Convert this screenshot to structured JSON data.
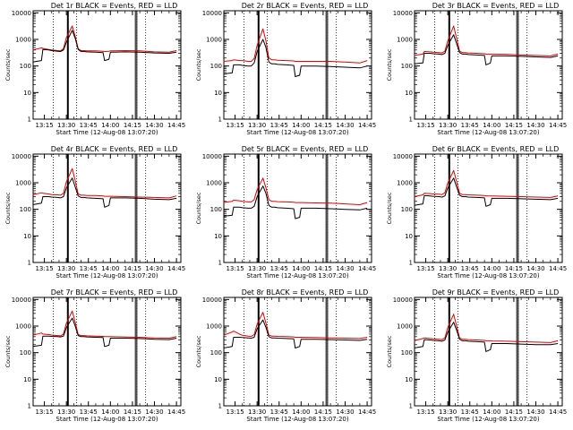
{
  "colors": {
    "events": "#000000",
    "lld": "#e00000",
    "axes": "#000000",
    "background": "#ffffff"
  },
  "panel_shared": {
    "x_tick_labels": [
      "13:15",
      "13:30",
      "13:45",
      "14:00",
      "14:15",
      "14:30",
      "14:45"
    ],
    "x_tick_times": [
      "13:15",
      "13:30",
      "13:45",
      "14:00",
      "14:15",
      "14:30",
      "14:45"
    ],
    "y_tick_labels": [
      "1",
      "10",
      "100",
      "1000",
      "10000"
    ],
    "xlabel": "Start Time (12-Aug-08 13:07:20)",
    "ylabel": "Counts/sec"
  },
  "chart_data": [
    {
      "type": "line",
      "title": "Det 1r  BLACK = Events, RED = LLD",
      "xlabel": "Start Time (12-Aug-08 13:07:20)",
      "ylabel": "Counts/sec",
      "xlim": [
        "13:07:20",
        "14:48:00"
      ],
      "ylim": [
        1,
        12000
      ],
      "yscale": "log",
      "x": [
        "13:07",
        "13:13",
        "13:14",
        "13:18",
        "13:20",
        "13:24",
        "13:26",
        "13:28",
        "13:30",
        "13:34",
        "13:36",
        "13:38",
        "13:40",
        "13:42",
        "13:44",
        "13:50",
        "13:55",
        "13:56",
        "13:59",
        "14:00",
        "14:10",
        "14:20",
        "14:30",
        "14:40",
        "14:45"
      ],
      "series": [
        {
          "name": "BLACK = Events",
          "values": [
            140,
            160,
            420,
            400,
            380,
            360,
            350,
            400,
            800,
            2200,
            1100,
            420,
            350,
            350,
            340,
            330,
            320,
            160,
            180,
            330,
            340,
            330,
            310,
            300,
            330
          ]
        },
        {
          "name": "RED = LLD",
          "values": [
            400,
            480,
            460,
            420,
            400,
            380,
            370,
            450,
            1200,
            3200,
            1300,
            450,
            380,
            380,
            370,
            370,
            360,
            350,
            360,
            370,
            380,
            370,
            340,
            330,
            380
          ]
        }
      ],
      "vlines_solid": [
        "13:31",
        "14:17",
        "14:18"
      ],
      "vlines_dotted": [
        "13:21",
        "13:37",
        "14:18",
        "14:24"
      ]
    },
    {
      "type": "line",
      "title": "Det 2r  BLACK = Events, RED = LLD",
      "xlabel": "Start Time (12-Aug-08 13:07:20)",
      "ylabel": "Counts/sec",
      "xlim": [
        "13:07:20",
        "14:48:00"
      ],
      "ylim": [
        1,
        12000
      ],
      "yscale": "log",
      "x": [
        "13:07",
        "13:13",
        "13:14",
        "13:18",
        "13:20",
        "13:24",
        "13:26",
        "13:28",
        "13:30",
        "13:34",
        "13:36",
        "13:38",
        "13:40",
        "13:42",
        "13:44",
        "13:50",
        "13:55",
        "13:56",
        "13:59",
        "14:00",
        "14:10",
        "14:20",
        "14:30",
        "14:40",
        "14:45"
      ],
      "series": [
        {
          "name": "BLACK = Events",
          "values": [
            50,
            55,
            110,
            110,
            105,
            100,
            100,
            130,
            350,
            1000,
            500,
            140,
            120,
            120,
            115,
            110,
            105,
            40,
            45,
            100,
            100,
            95,
            90,
            85,
            100
          ]
        },
        {
          "name": "RED = LLD",
          "values": [
            150,
            160,
            170,
            160,
            160,
            150,
            150,
            190,
            600,
            2500,
            900,
            200,
            170,
            170,
            165,
            160,
            155,
            150,
            150,
            150,
            150,
            150,
            140,
            130,
            160
          ]
        }
      ],
      "vlines_solid": [
        "13:31",
        "14:17",
        "14:18"
      ],
      "vlines_dotted": [
        "13:21",
        "13:37",
        "14:18",
        "14:24"
      ]
    },
    {
      "type": "line",
      "title": "Det 3r  BLACK = Events, RED = LLD",
      "xlabel": "Start Time (12-Aug-08 13:07:20)",
      "ylabel": "Counts/sec",
      "xlim": [
        "13:07:20",
        "14:48:00"
      ],
      "ylim": [
        1,
        12000
      ],
      "yscale": "log",
      "x": [
        "13:07",
        "13:13",
        "13:14",
        "13:18",
        "13:20",
        "13:24",
        "13:26",
        "13:28",
        "13:30",
        "13:34",
        "13:36",
        "13:38",
        "13:40",
        "13:42",
        "13:44",
        "13:50",
        "13:55",
        "13:56",
        "13:59",
        "14:00",
        "14:10",
        "14:20",
        "14:30",
        "14:40",
        "14:45"
      ],
      "series": [
        {
          "name": "BLACK = Events",
          "values": [
            120,
            130,
            300,
            300,
            290,
            280,
            270,
            300,
            600,
            1500,
            700,
            320,
            280,
            280,
            270,
            260,
            250,
            110,
            130,
            240,
            240,
            230,
            220,
            210,
            240
          ]
        },
        {
          "name": "RED = LLD",
          "values": [
            250,
            280,
            350,
            340,
            330,
            320,
            310,
            360,
            900,
            3200,
            1100,
            360,
            320,
            320,
            310,
            300,
            290,
            280,
            280,
            280,
            275,
            260,
            250,
            240,
            280
          ]
        }
      ],
      "vlines_solid": [
        "13:31",
        "14:17",
        "14:18"
      ],
      "vlines_dotted": [
        "13:21",
        "13:37",
        "14:18",
        "14:24"
      ]
    },
    {
      "type": "line",
      "title": "Det 4r  BLACK = Events, RED = LLD",
      "xlabel": "Start Time (12-Aug-08 13:07:20)",
      "ylabel": "Counts/sec",
      "xlim": [
        "13:07:20",
        "14:48:00"
      ],
      "ylim": [
        1,
        12000
      ],
      "yscale": "log",
      "x": [
        "13:07",
        "13:13",
        "13:14",
        "13:18",
        "13:20",
        "13:24",
        "13:26",
        "13:28",
        "13:30",
        "13:34",
        "13:36",
        "13:38",
        "13:40",
        "13:42",
        "13:44",
        "13:50",
        "13:55",
        "13:56",
        "13:59",
        "14:00",
        "14:10",
        "14:20",
        "14:30",
        "14:40",
        "14:45"
      ],
      "series": [
        {
          "name": "BLACK = Events",
          "values": [
            150,
            170,
            300,
            300,
            290,
            280,
            270,
            300,
            650,
            1500,
            700,
            320,
            280,
            280,
            270,
            260,
            250,
            120,
            140,
            270,
            270,
            260,
            240,
            230,
            260
          ]
        },
        {
          "name": "RED = LLD",
          "values": [
            350,
            420,
            400,
            380,
            360,
            350,
            340,
            400,
            1100,
            3400,
            1200,
            380,
            340,
            340,
            330,
            330,
            320,
            310,
            310,
            310,
            300,
            290,
            280,
            270,
            320
          ]
        }
      ],
      "vlines_solid": [
        "13:31",
        "14:17",
        "14:18"
      ],
      "vlines_dotted": [
        "13:21",
        "13:37",
        "14:18",
        "14:24"
      ]
    },
    {
      "type": "line",
      "title": "Det 5r  BLACK = Events, RED = LLD",
      "xlabel": "Start Time (12-Aug-08 13:07:20)",
      "ylabel": "Counts/sec",
      "xlim": [
        "13:07:20",
        "14:48:00"
      ],
      "ylim": [
        1,
        12000
      ],
      "yscale": "log",
      "x": [
        "13:07",
        "13:13",
        "13:14",
        "13:18",
        "13:20",
        "13:24",
        "13:26",
        "13:28",
        "13:30",
        "13:34",
        "13:36",
        "13:38",
        "13:40",
        "13:42",
        "13:44",
        "13:50",
        "13:55",
        "13:56",
        "13:59",
        "14:00",
        "14:10",
        "14:20",
        "14:30",
        "14:40",
        "14:45"
      ],
      "series": [
        {
          "name": "BLACK = Events",
          "values": [
            55,
            60,
            120,
            120,
            115,
            110,
            110,
            130,
            300,
            750,
            400,
            140,
            120,
            120,
            115,
            110,
            105,
            45,
            50,
            110,
            110,
            105,
            100,
            95,
            110
          ]
        },
        {
          "name": "RED = LLD",
          "values": [
            180,
            200,
            220,
            210,
            200,
            190,
            190,
            230,
            550,
            1500,
            650,
            230,
            200,
            200,
            195,
            190,
            185,
            180,
            180,
            180,
            175,
            170,
            160,
            150,
            180
          ]
        }
      ],
      "vlines_solid": [
        "13:31",
        "14:17",
        "14:18"
      ],
      "vlines_dotted": [
        "13:21",
        "13:37",
        "14:18",
        "14:24"
      ]
    },
    {
      "type": "line",
      "title": "Det 6r  BLACK = Events, RED = LLD",
      "xlabel": "Start Time (12-Aug-08 13:07:20)",
      "ylabel": "Counts/sec",
      "xlim": [
        "13:07:20",
        "14:48:00"
      ],
      "ylim": [
        1,
        12000
      ],
      "yscale": "log",
      "x": [
        "13:07",
        "13:13",
        "13:14",
        "13:18",
        "13:20",
        "13:24",
        "13:26",
        "13:28",
        "13:30",
        "13:34",
        "13:36",
        "13:38",
        "13:40",
        "13:42",
        "13:44",
        "13:50",
        "13:55",
        "13:56",
        "13:59",
        "14:00",
        "14:10",
        "14:20",
        "14:30",
        "14:40",
        "14:45"
      ],
      "series": [
        {
          "name": "BLACK = Events",
          "values": [
            140,
            160,
            330,
            320,
            310,
            300,
            290,
            320,
            650,
            1500,
            700,
            340,
            300,
            300,
            290,
            280,
            270,
            130,
            150,
            260,
            260,
            250,
            240,
            230,
            260
          ]
        },
        {
          "name": "RED = LLD",
          "values": [
            300,
            350,
            400,
            390,
            380,
            370,
            360,
            420,
            1000,
            2900,
            1100,
            400,
            360,
            360,
            350,
            340,
            330,
            320,
            320,
            320,
            310,
            300,
            290,
            280,
            320
          ]
        }
      ],
      "vlines_solid": [
        "13:31",
        "14:17",
        "14:18"
      ],
      "vlines_dotted": [
        "13:21",
        "13:37",
        "14:18",
        "14:24"
      ]
    },
    {
      "type": "line",
      "title": "Det 7r  BLACK = Events, RED = LLD",
      "xlabel": "Start Time (12-Aug-08 13:07:20)",
      "ylabel": "Counts/sec",
      "xlim": [
        "13:07:20",
        "14:48:00"
      ],
      "ylim": [
        1,
        12000
      ],
      "yscale": "log",
      "x": [
        "13:07",
        "13:13",
        "13:14",
        "13:18",
        "13:20",
        "13:24",
        "13:26",
        "13:28",
        "13:30",
        "13:34",
        "13:36",
        "13:38",
        "13:40",
        "13:42",
        "13:44",
        "13:50",
        "13:55",
        "13:56",
        "13:59",
        "14:00",
        "14:10",
        "14:20",
        "14:30",
        "14:40",
        "14:45"
      ],
      "series": [
        {
          "name": "BLACK = Events",
          "values": [
            170,
            190,
            420,
            420,
            410,
            400,
            390,
            420,
            900,
            2000,
            1000,
            440,
            400,
            400,
            390,
            380,
            370,
            170,
            190,
            350,
            350,
            340,
            320,
            310,
            350
          ]
        },
        {
          "name": "RED = LLD",
          "values": [
            450,
            550,
            500,
            480,
            460,
            440,
            430,
            500,
            1300,
            3700,
            1400,
            480,
            440,
            440,
            430,
            420,
            410,
            400,
            400,
            400,
            390,
            380,
            360,
            350,
            400
          ]
        }
      ],
      "vlines_solid": [
        "13:31",
        "14:17",
        "14:18"
      ],
      "vlines_dotted": [
        "13:21",
        "13:37",
        "14:18",
        "14:24"
      ]
    },
    {
      "type": "line",
      "title": "Det 8r  BLACK = Events, RED = LLD",
      "xlabel": "Start Time (12-Aug-08 13:07:20)",
      "ylabel": "Counts/sec",
      "xlim": [
        "13:07:20",
        "14:48:00"
      ],
      "ylim": [
        1,
        12000
      ],
      "yscale": "log",
      "x": [
        "13:07",
        "13:13",
        "13:14",
        "13:18",
        "13:20",
        "13:24",
        "13:26",
        "13:28",
        "13:30",
        "13:34",
        "13:36",
        "13:38",
        "13:40",
        "13:42",
        "13:44",
        "13:50",
        "13:55",
        "13:56",
        "13:59",
        "14:00",
        "14:10",
        "14:20",
        "14:30",
        "14:40",
        "14:45"
      ],
      "series": [
        {
          "name": "BLACK = Events",
          "values": [
            150,
            170,
            380,
            380,
            370,
            360,
            350,
            380,
            800,
            1700,
            900,
            400,
            360,
            360,
            350,
            340,
            330,
            150,
            170,
            320,
            320,
            310,
            300,
            290,
            320
          ]
        },
        {
          "name": "RED = LLD",
          "values": [
            450,
            600,
            650,
            500,
            450,
            420,
            410,
            480,
            1200,
            3300,
            1300,
            460,
            420,
            420,
            410,
            400,
            390,
            380,
            380,
            380,
            370,
            360,
            350,
            340,
            380
          ]
        }
      ],
      "vlines_solid": [
        "13:31",
        "14:17",
        "14:18"
      ],
      "vlines_dotted": [
        "13:21",
        "13:37",
        "14:18",
        "14:24"
      ]
    },
    {
      "type": "line",
      "title": "Det 9r  BLACK = Events, RED = LLD",
      "xlabel": "Start Time (12-Aug-08 13:07:20)",
      "ylabel": "Counts/sec",
      "xlim": [
        "13:07:20",
        "14:48:00"
      ],
      "ylim": [
        1,
        12000
      ],
      "yscale": "log",
      "x": [
        "13:07",
        "13:13",
        "13:14",
        "13:18",
        "13:20",
        "13:24",
        "13:26",
        "13:28",
        "13:30",
        "13:34",
        "13:36",
        "13:38",
        "13:40",
        "13:42",
        "13:44",
        "13:50",
        "13:55",
        "13:56",
        "13:59",
        "14:00",
        "14:10",
        "14:20",
        "14:30",
        "14:40",
        "14:45"
      ],
      "series": [
        {
          "name": "BLACK = Events",
          "values": [
            150,
            170,
            310,
            300,
            290,
            280,
            270,
            300,
            600,
            1400,
            700,
            320,
            280,
            280,
            270,
            260,
            250,
            110,
            130,
            220,
            220,
            210,
            200,
            200,
            220
          ]
        },
        {
          "name": "RED = LLD",
          "values": [
            280,
            340,
            360,
            340,
            330,
            320,
            310,
            360,
            900,
            2800,
            1000,
            360,
            320,
            320,
            310,
            300,
            290,
            280,
            280,
            275,
            270,
            260,
            250,
            240,
            280
          ]
        }
      ],
      "vlines_solid": [
        "13:31",
        "14:17",
        "14:18"
      ],
      "vlines_dotted": [
        "13:21",
        "13:37",
        "14:18",
        "14:24"
      ]
    }
  ]
}
